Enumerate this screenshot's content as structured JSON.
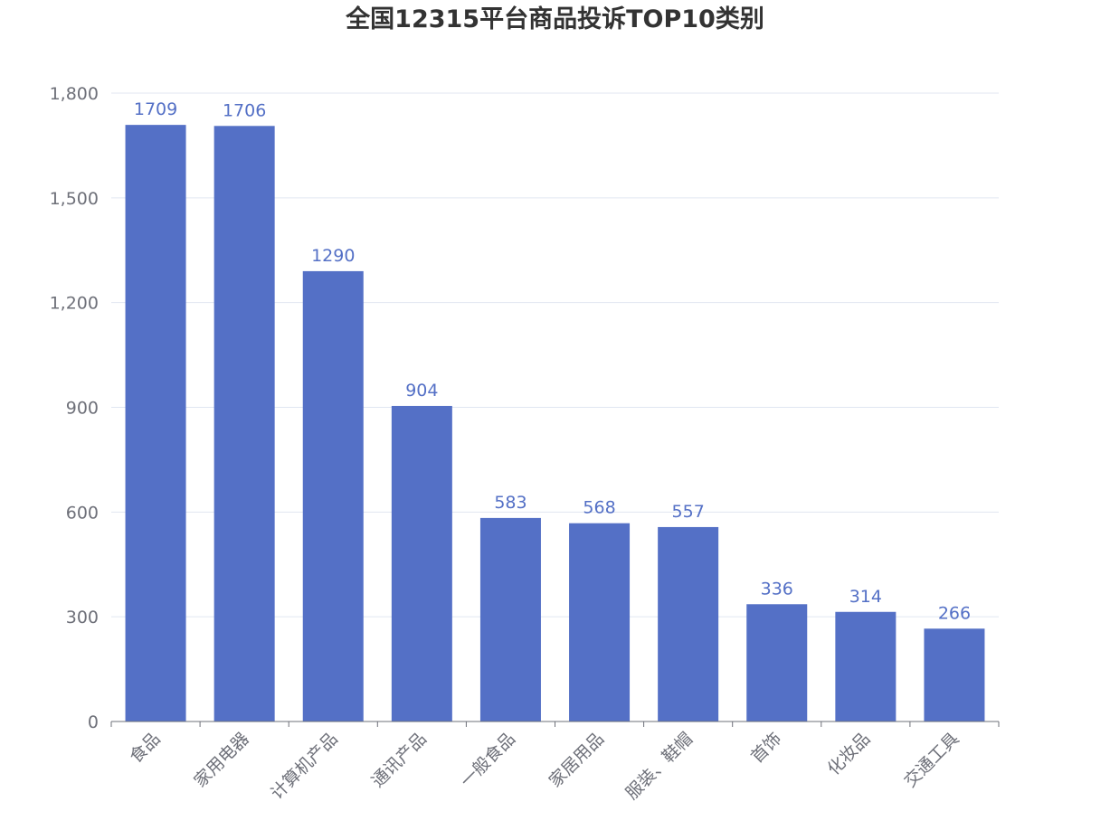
{
  "chart_data": {
    "type": "bar",
    "title": "全国12315平台商品投诉TOP10类别",
    "categories": [
      "食品",
      "家用电器",
      "计算机产品",
      "通讯产品",
      "一般食品",
      "家居用品",
      "服装、鞋帽",
      "首饰",
      "化妆品",
      "交通工具"
    ],
    "series": [
      {
        "values": [
          1709,
          1706,
          1290,
          904,
          583,
          568,
          557,
          336,
          314,
          266
        ]
      }
    ],
    "ylim": [
      0,
      1800
    ],
    "yticks": [
      0,
      300,
      600,
      900,
      1200,
      1500,
      1800
    ],
    "ytick_labels": [
      "0",
      "300",
      "600",
      "900",
      "1,200",
      "1,500",
      "1,800"
    ],
    "xlabel": "",
    "ylabel": "",
    "grid": true,
    "colors": {
      "bar": "#5470c6",
      "label": "#5470c6",
      "grid": "#e0e6f1",
      "axis": "#6e7079"
    }
  }
}
